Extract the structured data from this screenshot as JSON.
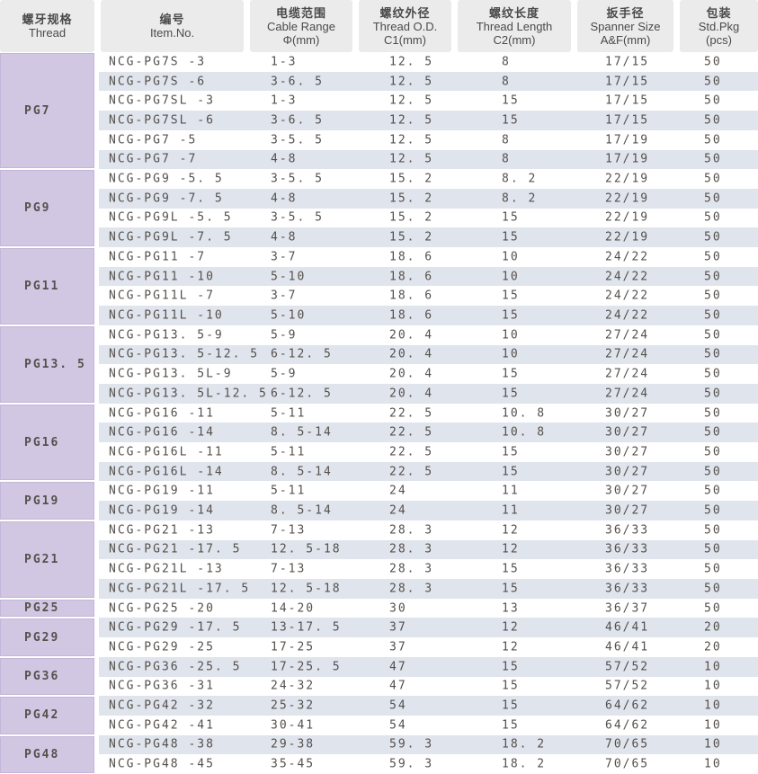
{
  "colors": {
    "header_bg": "#ebebeb",
    "header_text": "#4a4a4a",
    "thread_cell_bg": "#d2c7e2",
    "thread_cell_border": "#c3b6d8",
    "stripe_bg": "#dfe4ed",
    "row_bg": "#ffffff",
    "text_dark": "#55504c"
  },
  "table": {
    "columns": [
      {
        "zh": "螺牙规格",
        "en": "Thread",
        "sub": ""
      },
      {
        "zh": "编号",
        "en": "Item.No.",
        "sub": ""
      },
      {
        "zh": "电缆范围",
        "en": "Cable Range",
        "sub": "Φ(mm)"
      },
      {
        "zh": "螺纹外径",
        "en": "Thread O.D.",
        "sub": "C1(mm)"
      },
      {
        "zh": "螺纹长度",
        "en": "Thread Length",
        "sub": "C2(mm)"
      },
      {
        "zh": "扳手径",
        "en": "Spanner Size",
        "sub": "A&F(mm)"
      },
      {
        "zh": "包装",
        "en": "Std.Pkg",
        "sub": "(pcs)"
      }
    ],
    "groups": [
      {
        "thread": "PG7",
        "rows": [
          {
            "item": "NCG-PG7S -3",
            "range": "1-3",
            "od": "12. 5",
            "len": "8",
            "spanner": "17/15",
            "pkg": "50"
          },
          {
            "item": "NCG-PG7S -6",
            "range": "3-6. 5",
            "od": "12. 5",
            "len": "8",
            "spanner": "17/15",
            "pkg": "50"
          },
          {
            "item": "NCG-PG7SL -3",
            "range": "1-3",
            "od": "12. 5",
            "len": "15",
            "spanner": "17/15",
            "pkg": "50"
          },
          {
            "item": "NCG-PG7SL -6",
            "range": "3-6. 5",
            "od": "12. 5",
            "len": "15",
            "spanner": "17/15",
            "pkg": "50"
          },
          {
            "item": "NCG-PG7 -5",
            "range": "3-5. 5",
            "od": "12. 5",
            "len": "8",
            "spanner": "17/19",
            "pkg": "50"
          },
          {
            "item": "NCG-PG7 -7",
            "range": "4-8",
            "od": "12. 5",
            "len": "8",
            "spanner": "17/19",
            "pkg": "50"
          }
        ]
      },
      {
        "thread": "PG9",
        "rows": [
          {
            "item": "NCG-PG9 -5. 5",
            "range": "3-5. 5",
            "od": "15. 2",
            "len": "8. 2",
            "spanner": "22/19",
            "pkg": "50"
          },
          {
            "item": "NCG-PG9 -7. 5",
            "range": "4-8",
            "od": "15. 2",
            "len": "8. 2",
            "spanner": "22/19",
            "pkg": "50"
          },
          {
            "item": "NCG-PG9L -5. 5",
            "range": "3-5. 5",
            "od": "15. 2",
            "len": "15",
            "spanner": "22/19",
            "pkg": "50"
          },
          {
            "item": "NCG-PG9L -7. 5",
            "range": "4-8",
            "od": "15. 2",
            "len": "15",
            "spanner": "22/19",
            "pkg": "50"
          }
        ]
      },
      {
        "thread": "PG11",
        "rows": [
          {
            "item": "NCG-PG11 -7",
            "range": "3-7",
            "od": "18. 6",
            "len": "10",
            "spanner": "24/22",
            "pkg": "50"
          },
          {
            "item": "NCG-PG11 -10",
            "range": "5-10",
            "od": "18. 6",
            "len": "10",
            "spanner": "24/22",
            "pkg": "50"
          },
          {
            "item": "NCG-PG11L -7",
            "range": "3-7",
            "od": "18. 6",
            "len": "15",
            "spanner": "24/22",
            "pkg": "50"
          },
          {
            "item": "NCG-PG11L -10",
            "range": "5-10",
            "od": "18. 6",
            "len": "15",
            "spanner": "24/22",
            "pkg": "50"
          }
        ]
      },
      {
        "thread": "PG13. 5",
        "rows": [
          {
            "item": "NCG-PG13. 5-9",
            "range": "5-9",
            "od": "20. 4",
            "len": "10",
            "spanner": "27/24",
            "pkg": "50"
          },
          {
            "item": "NCG-PG13. 5-12. 5",
            "range": "6-12. 5",
            "od": "20. 4",
            "len": "10",
            "spanner": "27/24",
            "pkg": "50"
          },
          {
            "item": "NCG-PG13. 5L-9",
            "range": "5-9",
            "od": "20. 4",
            "len": "15",
            "spanner": "27/24",
            "pkg": "50"
          },
          {
            "item": "NCG-PG13. 5L-12. 5",
            "range": "6-12. 5",
            "od": "20. 4",
            "len": "15",
            "spanner": "27/24",
            "pkg": "50"
          }
        ]
      },
      {
        "thread": "PG16",
        "rows": [
          {
            "item": "NCG-PG16 -11",
            "range": "5-11",
            "od": "22. 5",
            "len": "10. 8",
            "spanner": "30/27",
            "pkg": "50"
          },
          {
            "item": "NCG-PG16 -14",
            "range": "8. 5-14",
            "od": "22. 5",
            "len": "10. 8",
            "spanner": "30/27",
            "pkg": "50"
          },
          {
            "item": "NCG-PG16L -11",
            "range": "5-11",
            "od": "22. 5",
            "len": "15",
            "spanner": "30/27",
            "pkg": "50"
          },
          {
            "item": "NCG-PG16L -14",
            "range": "8. 5-14",
            "od": "22. 5",
            "len": "15",
            "spanner": "30/27",
            "pkg": "50"
          }
        ]
      },
      {
        "thread": "PG19",
        "rows": [
          {
            "item": "NCG-PG19 -11",
            "range": "5-11",
            "od": "24",
            "len": "11",
            "spanner": "30/27",
            "pkg": "50"
          },
          {
            "item": "NCG-PG19 -14",
            "range": "8. 5-14",
            "od": "24",
            "len": "11",
            "spanner": "30/27",
            "pkg": "50"
          }
        ]
      },
      {
        "thread": "PG21",
        "rows": [
          {
            "item": "NCG-PG21 -13",
            "range": "7-13",
            "od": "28. 3",
            "len": "12",
            "spanner": "36/33",
            "pkg": "50"
          },
          {
            "item": "NCG-PG21 -17. 5",
            "range": "12. 5-18",
            "od": "28. 3",
            "len": "12",
            "spanner": "36/33",
            "pkg": "50"
          },
          {
            "item": "NCG-PG21L -13",
            "range": "7-13",
            "od": "28. 3",
            "len": "15",
            "spanner": "36/33",
            "pkg": "50"
          },
          {
            "item": "NCG-PG21L -17. 5",
            "range": "12. 5-18",
            "od": "28. 3",
            "len": "15",
            "spanner": "36/33",
            "pkg": "50"
          }
        ]
      },
      {
        "thread": "PG25",
        "rows": [
          {
            "item": "NCG-PG25 -20",
            "range": "14-20",
            "od": "30",
            "len": "13",
            "spanner": "36/37",
            "pkg": "50"
          }
        ]
      },
      {
        "thread": "PG29",
        "rows": [
          {
            "item": "NCG-PG29 -17. 5",
            "range": "13-17. 5",
            "od": "37",
            "len": "12",
            "spanner": "46/41",
            "pkg": "20"
          },
          {
            "item": "NCG-PG29 -25",
            "range": "17-25",
            "od": "37",
            "len": "12",
            "spanner": "46/41",
            "pkg": "20"
          }
        ]
      },
      {
        "thread": "PG36",
        "rows": [
          {
            "item": "NCG-PG36 -25. 5",
            "range": "17-25. 5",
            "od": "47",
            "len": "15",
            "spanner": "57/52",
            "pkg": "10"
          },
          {
            "item": "NCG-PG36 -31",
            "range": "24-32",
            "od": "47",
            "len": "15",
            "spanner": "57/52",
            "pkg": "10"
          }
        ]
      },
      {
        "thread": "PG42",
        "rows": [
          {
            "item": "NCG-PG42 -32",
            "range": "25-32",
            "od": "54",
            "len": "15",
            "spanner": "64/62",
            "pkg": "10"
          },
          {
            "item": "NCG-PG42 -41",
            "range": "30-41",
            "od": "54",
            "len": "15",
            "spanner": "64/62",
            "pkg": "10"
          }
        ]
      },
      {
        "thread": "PG48",
        "rows": [
          {
            "item": "NCG-PG48 -38",
            "range": "29-38",
            "od": "59. 3",
            "len": "18. 2",
            "spanner": "70/65",
            "pkg": "10"
          },
          {
            "item": "NCG-PG48 -45",
            "range": "35-45",
            "od": "59. 3",
            "len": "18. 2",
            "spanner": "70/65",
            "pkg": "10"
          }
        ]
      }
    ]
  }
}
